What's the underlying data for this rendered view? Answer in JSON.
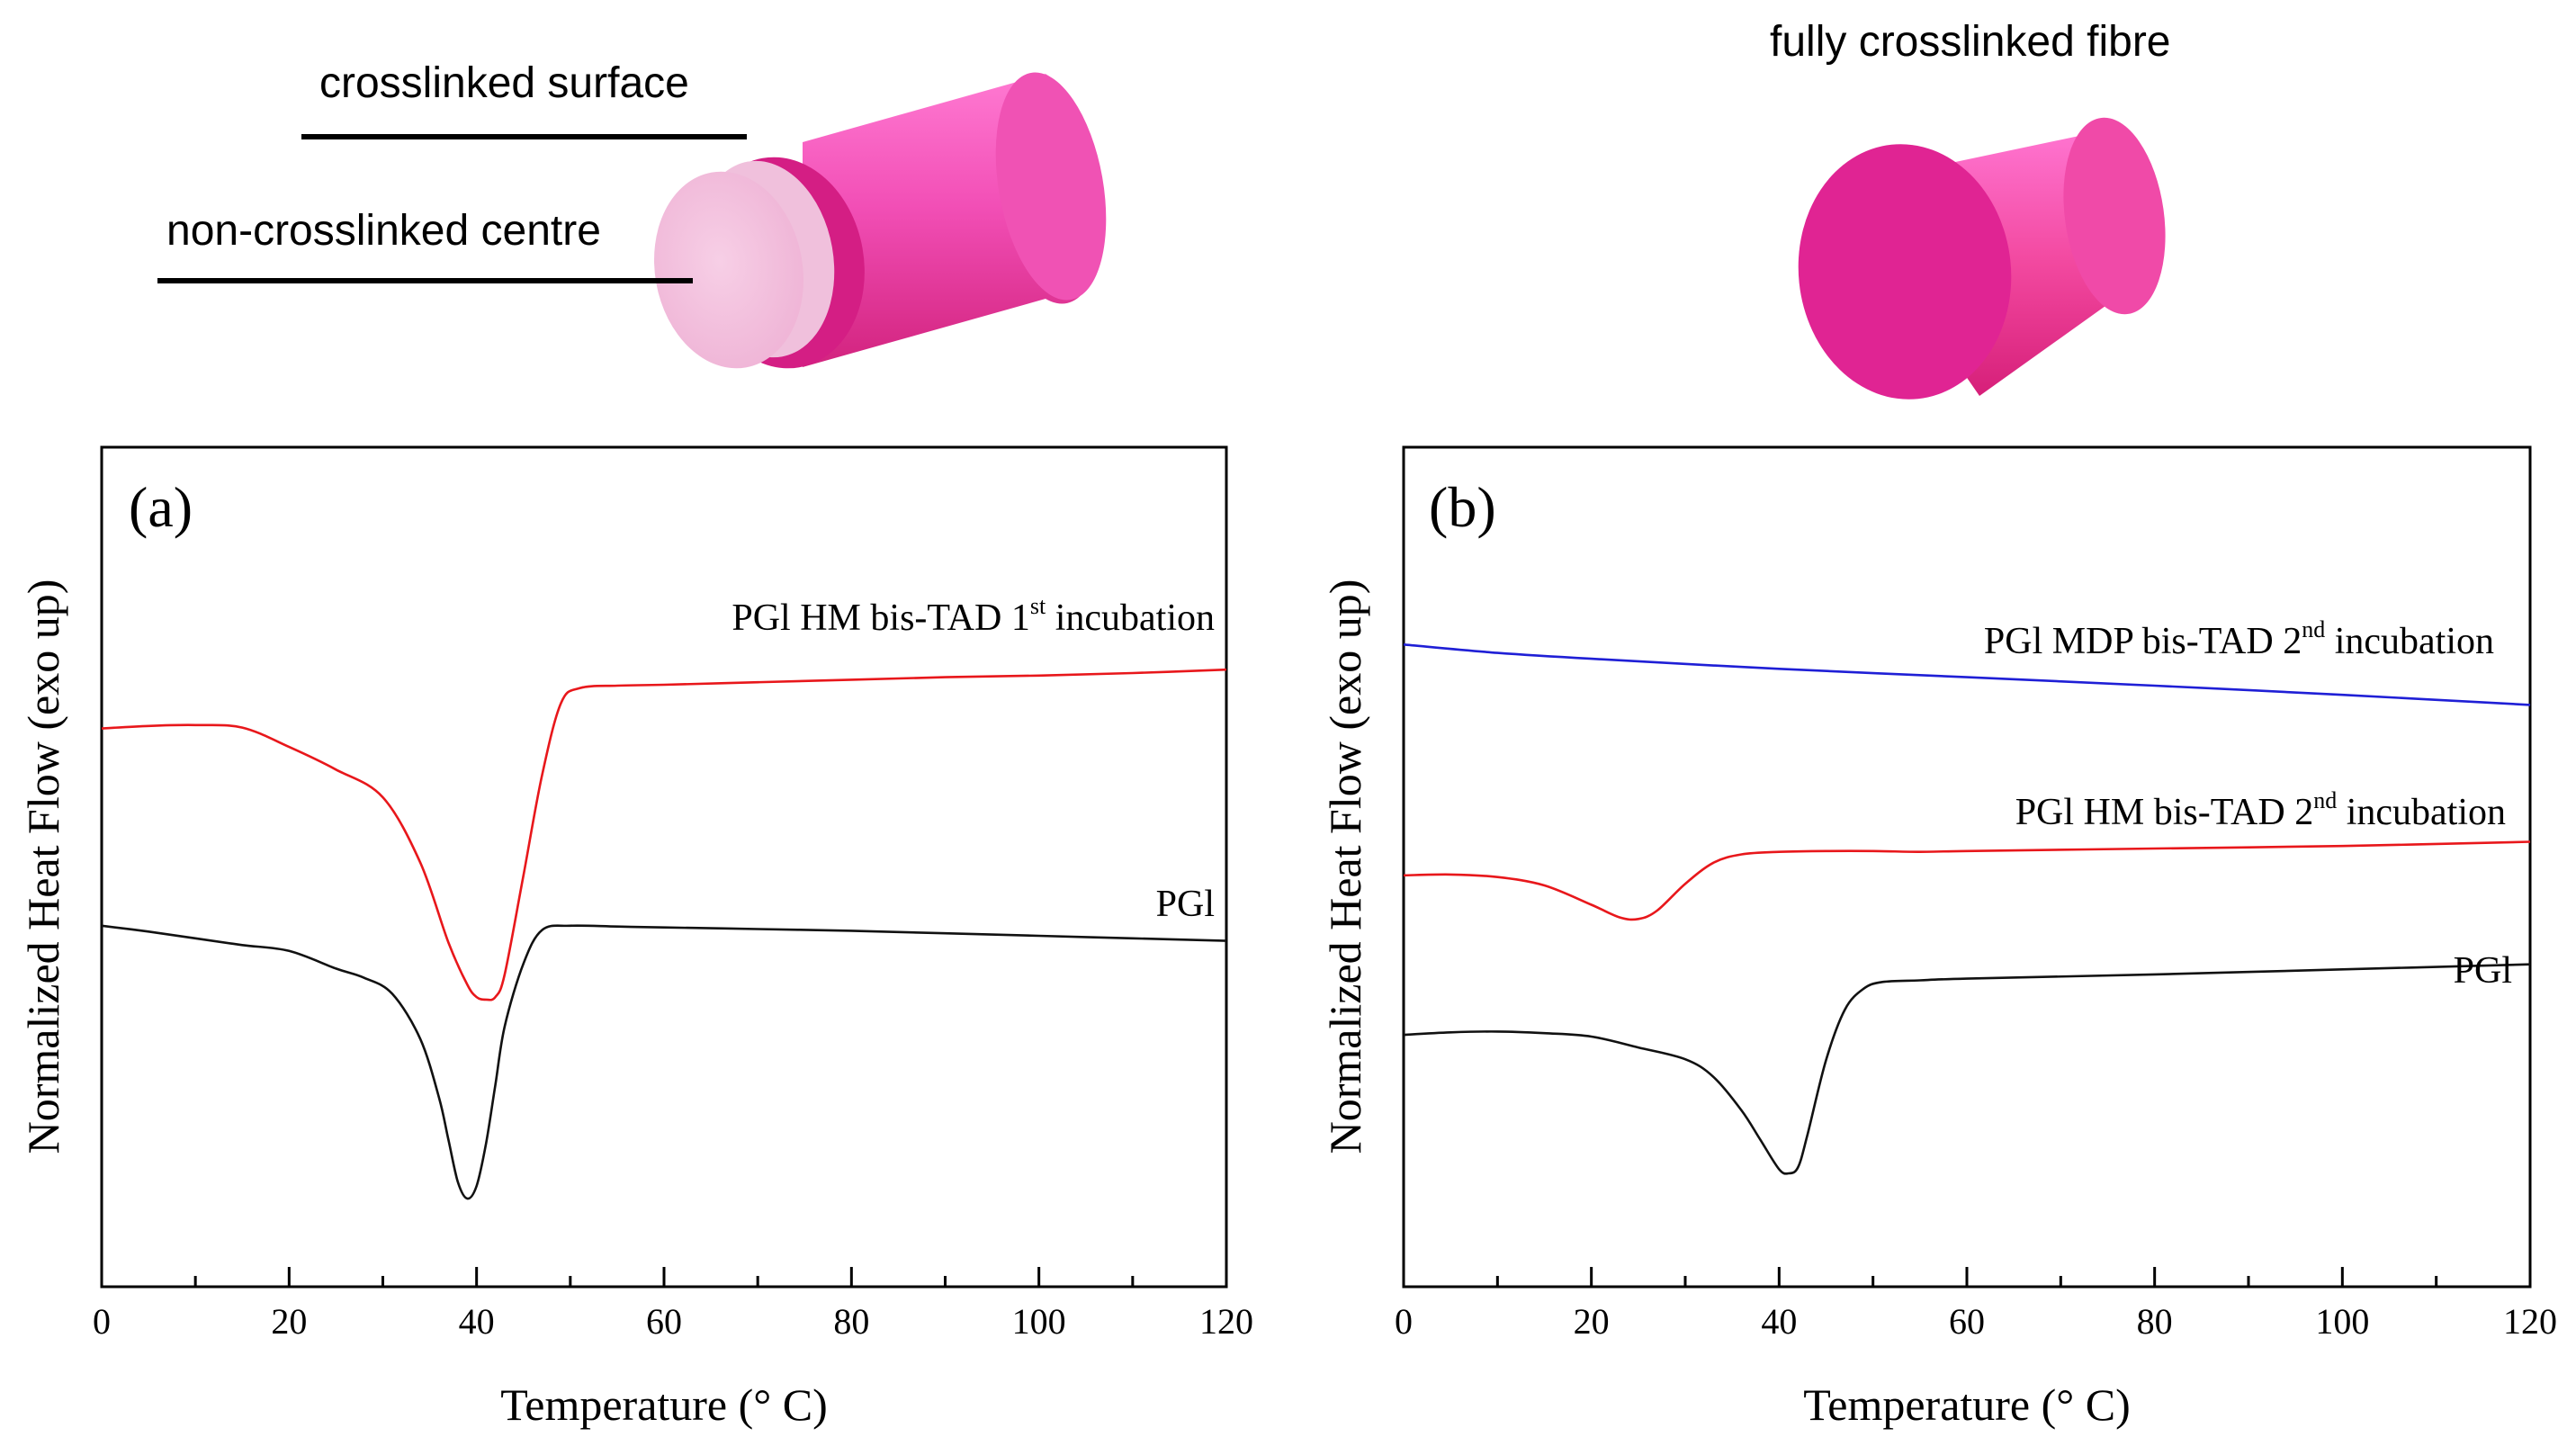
{
  "illustrations": {
    "left": {
      "surface_label": "crosslinked surface",
      "centre_label": "non-crosslinked centre"
    },
    "right": {
      "label": "fully crosslinked fibre"
    },
    "colors": {
      "magenta_dark": "#c8167a",
      "magenta_mid": "#e8289a",
      "magenta_light": "#ff7ad2",
      "core_pink": "#f4c2de"
    }
  },
  "chart_data": [
    {
      "type": "line",
      "panel_label": "(a)",
      "xlabel": "Temperature (° C)",
      "ylabel": "Normalized Heat Flow (exo up)",
      "xlim": [
        0,
        120
      ],
      "ylim": [
        0,
        100
      ],
      "xticks": [
        "0",
        "20",
        "40",
        "60",
        "80",
        "100",
        "120"
      ],
      "yticks_shown": false,
      "series": [
        {
          "name": "PGl HM bis-TAD 1st incubation",
          "label_main": "PGl HM bis-TAD 1",
          "label_sup": "st",
          "label_tail": " incubation",
          "color": "#e8171b",
          "x": [
            0,
            5,
            10,
            15,
            20,
            25,
            30,
            34,
            37,
            39,
            40,
            41,
            42,
            43,
            45,
            47,
            49,
            51,
            55,
            60,
            70,
            80,
            90,
            100,
            110,
            120
          ],
          "y": [
            66.5,
            66.8,
            66.9,
            66.6,
            64.3,
            61.6,
            58.3,
            50.5,
            41.0,
            36.0,
            34.5,
            34.2,
            34.5,
            37.2,
            49.0,
            61.0,
            69.5,
            71.3,
            71.6,
            71.7,
            72.0,
            72.3,
            72.6,
            72.8,
            73.1,
            73.5
          ]
        },
        {
          "name": "PGl",
          "label_main": "PGl",
          "label_sup": "",
          "label_tail": "",
          "color": "#111111",
          "x": [
            0,
            5,
            10,
            15,
            20,
            25,
            28,
            31,
            34,
            36,
            37,
            38,
            39,
            40,
            41,
            42,
            43,
            45,
            47,
            50,
            55,
            60,
            70,
            80,
            90,
            100,
            110,
            120
          ],
          "y": [
            43.0,
            42.3,
            41.5,
            40.7,
            40.0,
            37.9,
            36.8,
            34.9,
            29.5,
            22.5,
            17.5,
            12.5,
            10.5,
            12.0,
            17.0,
            24.0,
            31.0,
            38.5,
            42.5,
            43.0,
            42.9,
            42.8,
            42.6,
            42.4,
            42.1,
            41.8,
            41.5,
            41.2
          ]
        }
      ]
    },
    {
      "type": "line",
      "panel_label": "(b)",
      "xlabel": "Temperature (° C)",
      "ylabel": "Normalized Heat Flow (exo up)",
      "xlim": [
        0,
        120
      ],
      "ylim": [
        0,
        100
      ],
      "xticks": [
        "0",
        "20",
        "40",
        "60",
        "80",
        "100",
        "120"
      ],
      "yticks_shown": false,
      "series": [
        {
          "name": "PGl MDP bis-TAD 2nd incubation",
          "label_main": "PGl MDP bis-TAD 2",
          "label_sup": "nd",
          "label_tail": " incubation",
          "color": "#1f1fd6",
          "x": [
            0,
            10,
            20,
            40,
            60,
            80,
            100,
            120
          ],
          "y": [
            76.5,
            75.5,
            74.8,
            73.6,
            72.6,
            71.6,
            70.5,
            69.3
          ]
        },
        {
          "name": "PGl HM bis-TAD 2nd incubation",
          "label_main": "PGl HM bis-TAD 2",
          "label_sup": "nd",
          "label_tail": " incubation",
          "color": "#e8171b",
          "x": [
            0,
            5,
            10,
            15,
            20,
            23,
            25,
            27,
            30,
            33,
            36,
            40,
            45,
            50,
            55,
            60,
            80,
            100,
            120
          ],
          "y": [
            49.0,
            49.1,
            48.8,
            47.8,
            45.5,
            44.0,
            43.8,
            44.8,
            48.0,
            50.5,
            51.5,
            51.8,
            51.9,
            51.9,
            51.8,
            51.9,
            52.2,
            52.5,
            53.0
          ]
        },
        {
          "name": "PGl",
          "label_main": "PGl",
          "label_sup": "",
          "label_tail": "",
          "color": "#111111",
          "x": [
            0,
            5,
            10,
            15,
            20,
            25,
            30,
            33,
            36,
            38,
            40,
            41,
            42,
            43,
            45,
            47,
            49,
            51,
            55,
            60,
            80,
            100,
            120
          ],
          "y": [
            30.0,
            30.3,
            30.4,
            30.2,
            29.8,
            28.5,
            27.1,
            25.0,
            21.0,
            17.5,
            14.0,
            13.5,
            14.2,
            18.0,
            27.0,
            33.0,
            35.5,
            36.3,
            36.5,
            36.7,
            37.2,
            37.8,
            38.4
          ]
        }
      ]
    }
  ]
}
